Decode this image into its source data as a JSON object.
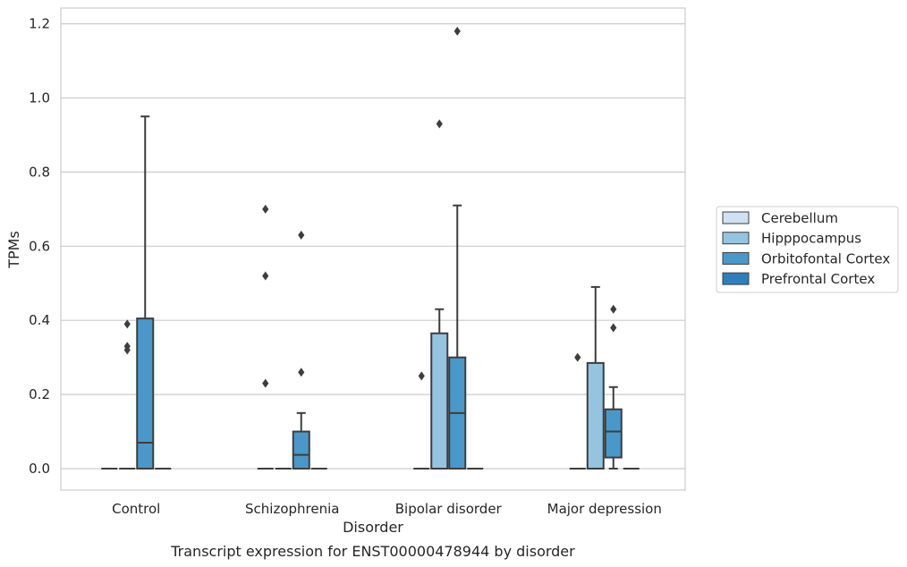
{
  "caption": "Transcript expression for ENST00000478944 by disorder",
  "chart_data": {
    "type": "box",
    "title": "",
    "xlabel": "Disorder",
    "ylabel": "TPMs",
    "ylim": [
      -0.057,
      1.24
    ],
    "yticks": [
      0.0,
      0.2,
      0.4,
      0.6,
      0.8,
      1.0,
      1.2
    ],
    "ytick_labels": [
      "0.0",
      "0.2",
      "0.4",
      "0.6",
      "0.8",
      "1.0",
      "1.2"
    ],
    "grid": "horizontal",
    "legend_position": "right",
    "categories": [
      "Control",
      "Schizophrenia",
      "Bipolar disorder",
      "Major depression"
    ],
    "series": [
      {
        "name": "Cerebellum",
        "color": "#d0e1f2",
        "boxes": [
          {
            "q1": 0,
            "median": 0,
            "q3": 0,
            "whisker_low": 0,
            "whisker_high": 0,
            "outliers": []
          },
          {
            "q1": 0,
            "median": 0,
            "q3": 0,
            "whisker_low": 0,
            "whisker_high": 0,
            "outliers": [
              0.23,
              0.52,
              0.7
            ]
          },
          {
            "q1": 0,
            "median": 0,
            "q3": 0,
            "whisker_low": 0,
            "whisker_high": 0,
            "outliers": [
              0.25
            ]
          },
          {
            "q1": 0,
            "median": 0,
            "q3": 0,
            "whisker_low": 0,
            "whisker_high": 0,
            "outliers": [
              0.3
            ]
          }
        ]
      },
      {
        "name": "Hipppocampus",
        "color": "#94c4df",
        "boxes": [
          {
            "q1": 0,
            "median": 0,
            "q3": 0,
            "whisker_low": 0,
            "whisker_high": 0,
            "outliers": [
              0.32,
              0.33,
              0.39
            ]
          },
          {
            "q1": 0,
            "median": 0,
            "q3": 0,
            "whisker_low": 0,
            "whisker_high": 0,
            "outliers": []
          },
          {
            "q1": 0,
            "median": 0,
            "q3": 0.365,
            "whisker_low": 0,
            "whisker_high": 0.43,
            "outliers": [
              0.93
            ]
          },
          {
            "q1": 0,
            "median": 0,
            "q3": 0.285,
            "whisker_low": 0,
            "whisker_high": 0.49,
            "outliers": []
          }
        ]
      },
      {
        "name": "Orbitofontal Cortex",
        "color": "#4a98c9",
        "boxes": [
          {
            "q1": 0,
            "median": 0.07,
            "q3": 0.405,
            "whisker_low": 0,
            "whisker_high": 0.95,
            "outliers": []
          },
          {
            "q1": 0,
            "median": 0.037,
            "q3": 0.1,
            "whisker_low": 0,
            "whisker_high": 0.15,
            "outliers": [
              0.26,
              0.63
            ]
          },
          {
            "q1": 0,
            "median": 0.15,
            "q3": 0.3,
            "whisker_low": 0,
            "whisker_high": 0.71,
            "outliers": [
              1.18
            ]
          },
          {
            "q1": 0.03,
            "median": 0.1,
            "q3": 0.16,
            "whisker_low": 0,
            "whisker_high": 0.22,
            "outliers": [
              0.38,
              0.43
            ]
          }
        ]
      },
      {
        "name": "Prefrontal Cortex",
        "color": "#2e7ebc",
        "boxes": [
          {
            "q1": 0,
            "median": 0,
            "q3": 0,
            "whisker_low": 0,
            "whisker_high": 0,
            "outliers": []
          },
          {
            "q1": 0,
            "median": 0,
            "q3": 0,
            "whisker_low": 0,
            "whisker_high": 0,
            "outliers": []
          },
          {
            "q1": 0,
            "median": 0,
            "q3": 0,
            "whisker_low": 0,
            "whisker_high": 0,
            "outliers": []
          },
          {
            "q1": 0,
            "median": 0,
            "q3": 0,
            "whisker_low": 0,
            "whisker_high": 0,
            "outliers": []
          }
        ]
      }
    ]
  }
}
